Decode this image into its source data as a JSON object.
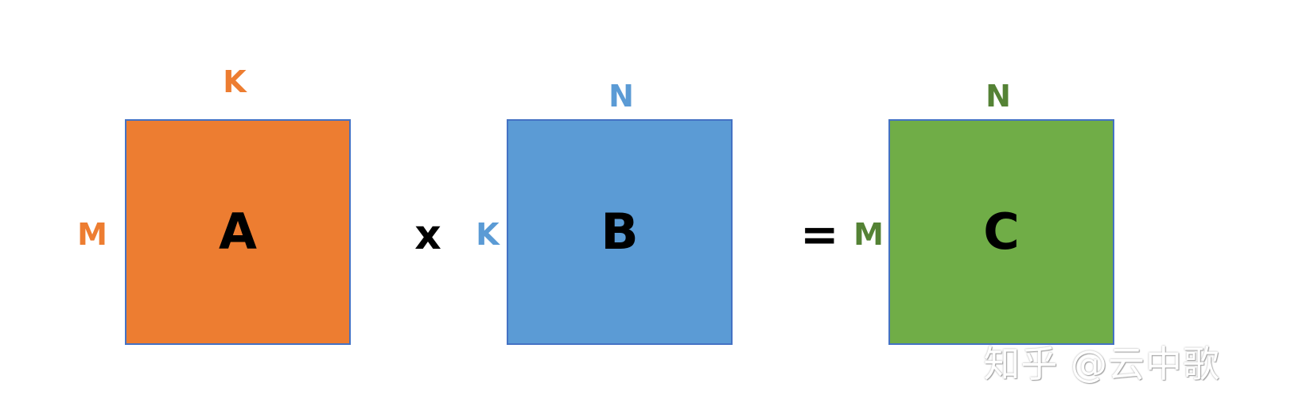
{
  "colors": {
    "matrix_a": "#ed7d31",
    "matrix_b": "#5b9bd5",
    "matrix_c": "#70ad47",
    "label_a": "#ed7d31",
    "label_b": "#5b9bd5",
    "label_c": "#548235",
    "border": "#4472c4"
  },
  "matrices": {
    "a": {
      "name": "A",
      "top_dim": "K",
      "side_dim": "M"
    },
    "b": {
      "name": "B",
      "top_dim": "N",
      "side_dim": "K"
    },
    "c": {
      "name": "C",
      "top_dim": "N",
      "side_dim": "M"
    }
  },
  "operators": {
    "multiply": "x",
    "equals": "="
  },
  "watermark": "知乎 @云中歌"
}
